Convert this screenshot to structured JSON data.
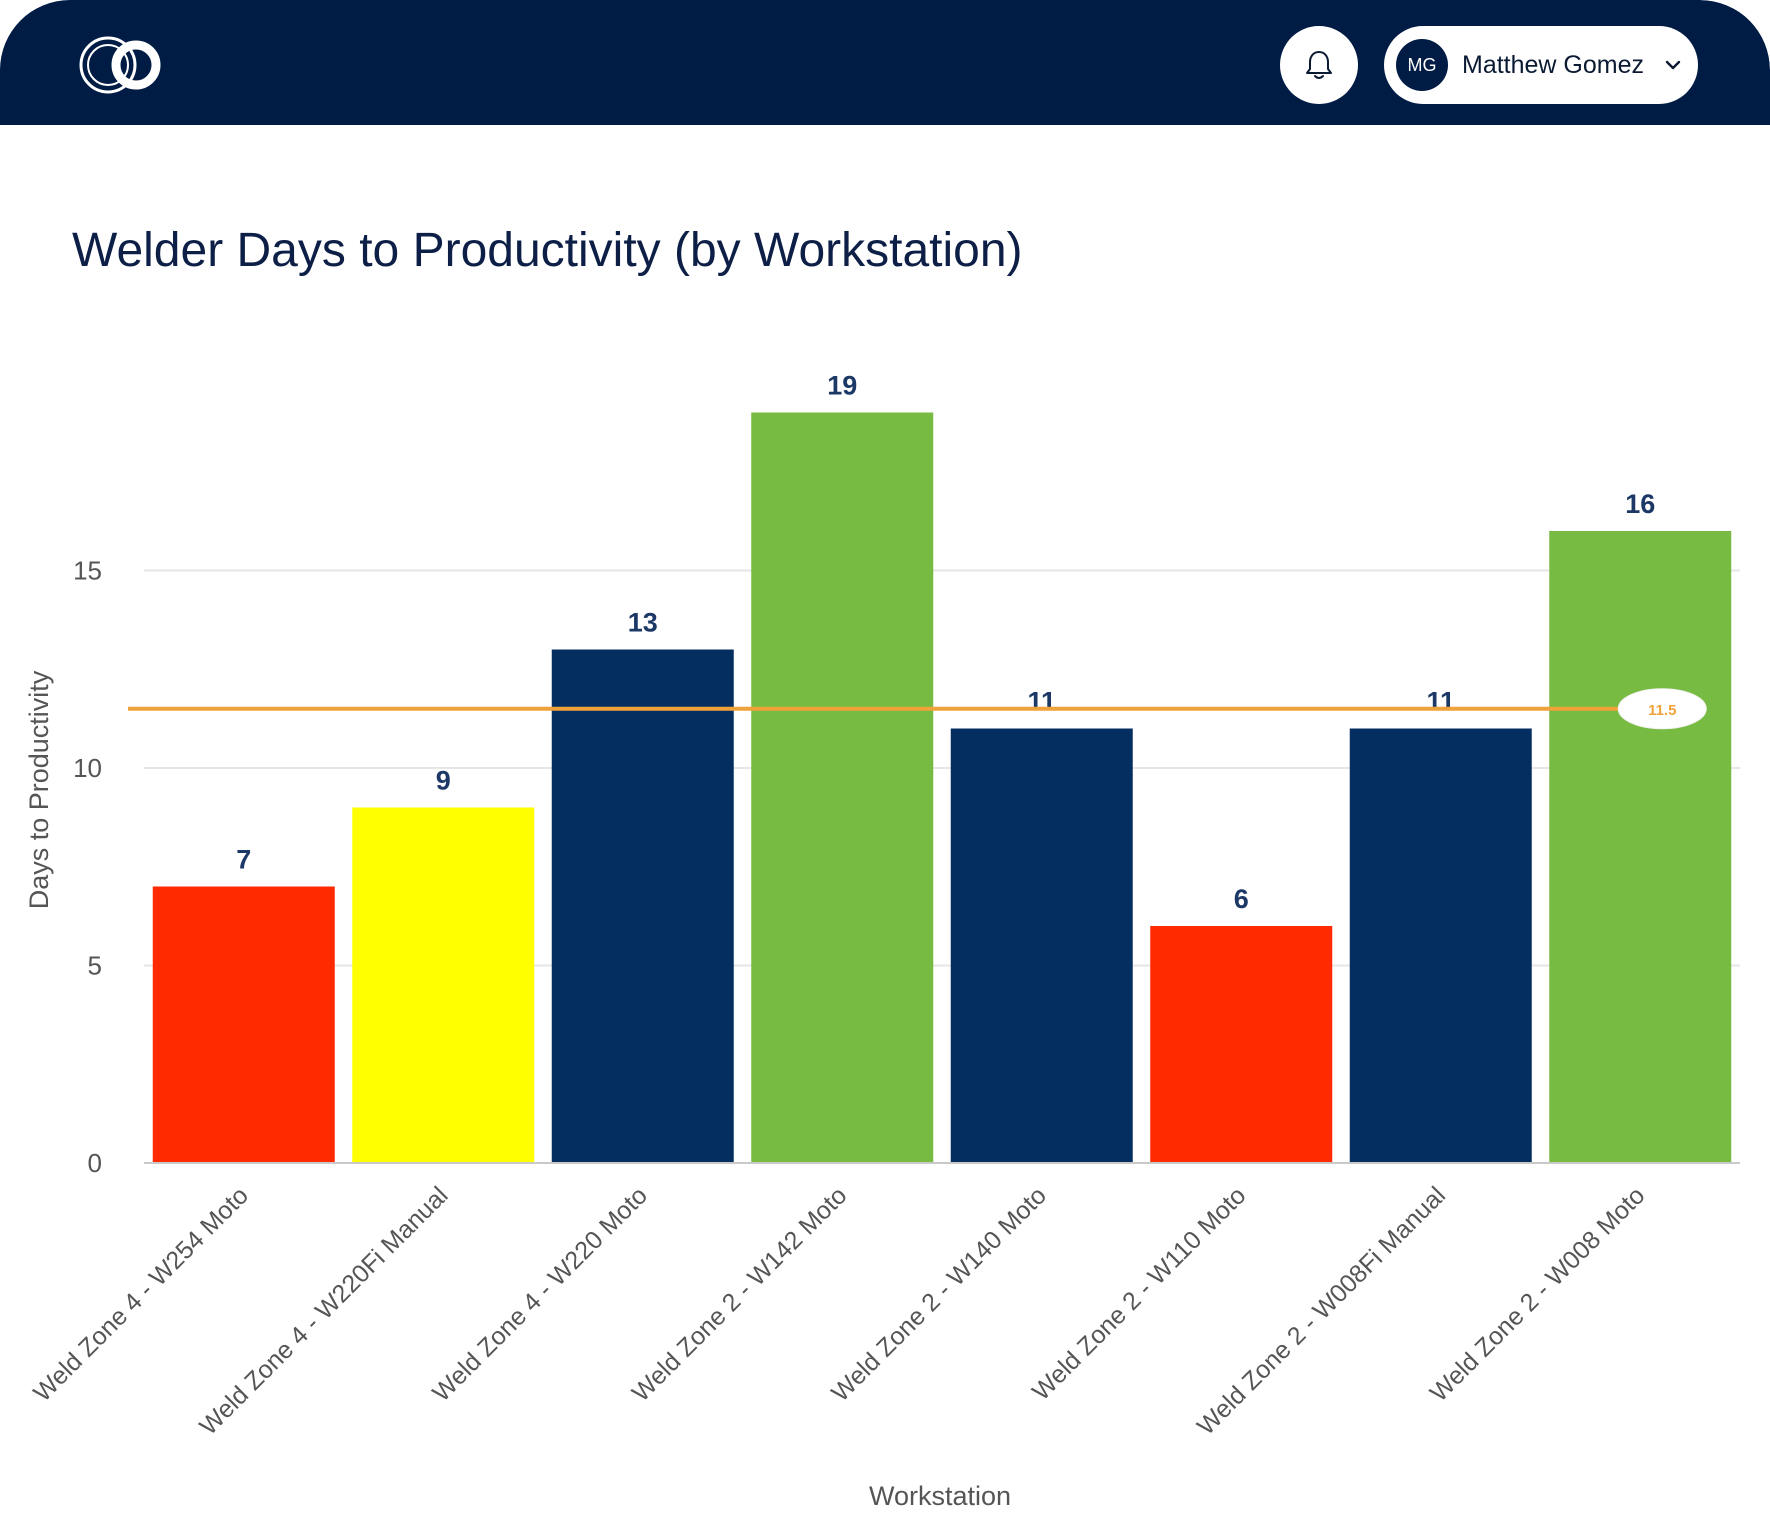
{
  "header": {
    "logo_icon": "interlocking-circles-logo",
    "notifications_icon": "bell-icon",
    "user": {
      "initials": "MG",
      "name": "Matthew Gomez",
      "menu_icon": "chevron-down-icon"
    }
  },
  "page": {
    "title": "Welder Days to Productivity (by Workstation)"
  },
  "colors": {
    "header_bg": "#001b44",
    "red": "#ff2a00",
    "yellow": "#ffff00",
    "navy": "#042e60",
    "green": "#78bb42",
    "target_line": "#f0a23a",
    "data_label": "#1c3866",
    "axis_text": "#555555"
  },
  "chart_data": {
    "type": "bar",
    "title": "Welder Days to Productivity (by Workstation)",
    "xlabel": "Workstation",
    "ylabel": "Days to Productivity",
    "ylim": [
      0,
      20
    ],
    "yticks": [
      0,
      5,
      10,
      15
    ],
    "grid": true,
    "categories": [
      "Weld Zone 4 - W254 Moto",
      "Weld Zone 4 - W220Fi Manual",
      "Weld Zone 4 - W220 Moto",
      "Weld Zone 2 - W142 Moto",
      "Weld Zone 2 - W140 Moto",
      "Weld Zone 2 - W110 Moto",
      "Weld Zone 2 - W008Fi Manual",
      "Weld Zone 2 - W008 Moto"
    ],
    "values": [
      7,
      9,
      13,
      19,
      11,
      6,
      11,
      16
    ],
    "value_labels": [
      "7",
      "9",
      "13",
      "19",
      "11",
      "6",
      "11",
      "16"
    ],
    "bar_colors": [
      "#ff2a00",
      "#ffff00",
      "#042e60",
      "#78bb42",
      "#042e60",
      "#ff2a00",
      "#042e60",
      "#78bb42"
    ],
    "reference_line": {
      "value": 11.5,
      "label": "11.5",
      "color": "#f0a23a"
    }
  }
}
